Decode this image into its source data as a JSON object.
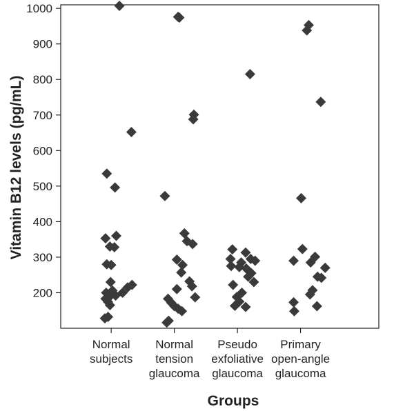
{
  "chart_data": {
    "type": "scatter",
    "title": "",
    "xlabel": "Groups",
    "ylabel": "Vitamin B12 levels (pg/mL)",
    "ylim": [
      100,
      1010
    ],
    "yticks": [
      200,
      300,
      400,
      500,
      600,
      700,
      800,
      900,
      1000
    ],
    "grid": false,
    "marker": "diamond",
    "marker_color": "#3a3a3a",
    "categories": [
      [
        "Normal",
        "subjects"
      ],
      [
        "Normal",
        "tension",
        "glaucoma"
      ],
      [
        "Pseudo",
        "exfoliative",
        "glaucoma"
      ],
      [
        "Primary",
        "open-angle",
        "glaucoma"
      ]
    ],
    "series": [
      {
        "values": [
          {
            "x": 1.13,
            "y": 1007
          },
          {
            "x": 1.32,
            "y": 652
          },
          {
            "x": 0.93,
            "y": 535
          },
          {
            "x": 1.06,
            "y": 496
          },
          {
            "x": 1.08,
            "y": 360
          },
          {
            "x": 0.91,
            "y": 353
          },
          {
            "x": 0.98,
            "y": 330
          },
          {
            "x": 1.05,
            "y": 328
          },
          {
            "x": 0.93,
            "y": 280
          },
          {
            "x": 1.0,
            "y": 278
          },
          {
            "x": 0.99,
            "y": 230
          },
          {
            "x": 1.33,
            "y": 222
          },
          {
            "x": 1.26,
            "y": 215
          },
          {
            "x": 1.02,
            "y": 206
          },
          {
            "x": 0.92,
            "y": 200
          },
          {
            "x": 1.18,
            "y": 200
          },
          {
            "x": 1.07,
            "y": 192
          },
          {
            "x": 0.97,
            "y": 188
          },
          {
            "x": 0.91,
            "y": 183
          },
          {
            "x": 0.95,
            "y": 174
          },
          {
            "x": 0.98,
            "y": 165
          },
          {
            "x": 0.95,
            "y": 132
          },
          {
            "x": 0.9,
            "y": 128
          }
        ]
      },
      {
        "values": [
          {
            "x": 2.06,
            "y": 976
          },
          {
            "x": 2.08,
            "y": 974
          },
          {
            "x": 2.31,
            "y": 701
          },
          {
            "x": 2.3,
            "y": 688
          },
          {
            "x": 1.85,
            "y": 472
          },
          {
            "x": 2.16,
            "y": 367
          },
          {
            "x": 2.2,
            "y": 345
          },
          {
            "x": 2.29,
            "y": 337
          },
          {
            "x": 2.04,
            "y": 293
          },
          {
            "x": 2.13,
            "y": 278
          },
          {
            "x": 2.11,
            "y": 257
          },
          {
            "x": 2.24,
            "y": 232
          },
          {
            "x": 2.28,
            "y": 218
          },
          {
            "x": 2.04,
            "y": 210
          },
          {
            "x": 2.33,
            "y": 187
          },
          {
            "x": 1.9,
            "y": 183
          },
          {
            "x": 1.95,
            "y": 172
          },
          {
            "x": 2.0,
            "y": 162
          },
          {
            "x": 2.06,
            "y": 155
          },
          {
            "x": 2.12,
            "y": 148
          },
          {
            "x": 1.91,
            "y": 121
          },
          {
            "x": 1.88,
            "y": 116
          }
        ]
      },
      {
        "values": [
          {
            "x": 3.2,
            "y": 815
          },
          {
            "x": 2.92,
            "y": 322
          },
          {
            "x": 3.13,
            "y": 313
          },
          {
            "x": 2.89,
            "y": 295
          },
          {
            "x": 3.21,
            "y": 295
          },
          {
            "x": 3.28,
            "y": 290
          },
          {
            "x": 3.06,
            "y": 285
          },
          {
            "x": 2.9,
            "y": 275
          },
          {
            "x": 3.03,
            "y": 272
          },
          {
            "x": 3.14,
            "y": 268
          },
          {
            "x": 3.22,
            "y": 255
          },
          {
            "x": 3.17,
            "y": 245
          },
          {
            "x": 3.26,
            "y": 230
          },
          {
            "x": 2.93,
            "y": 222
          },
          {
            "x": 3.07,
            "y": 200
          },
          {
            "x": 2.99,
            "y": 188
          },
          {
            "x": 3.03,
            "y": 175
          },
          {
            "x": 2.96,
            "y": 163
          },
          {
            "x": 3.13,
            "y": 160
          }
        ]
      },
      {
        "values": [
          {
            "x": 4.13,
            "y": 953
          },
          {
            "x": 4.1,
            "y": 938
          },
          {
            "x": 4.32,
            "y": 737
          },
          {
            "x": 4.01,
            "y": 466
          },
          {
            "x": 4.03,
            "y": 323
          },
          {
            "x": 4.23,
            "y": 301
          },
          {
            "x": 3.89,
            "y": 290
          },
          {
            "x": 4.16,
            "y": 285
          },
          {
            "x": 4.39,
            "y": 270
          },
          {
            "x": 4.27,
            "y": 245
          },
          {
            "x": 4.33,
            "y": 242
          },
          {
            "x": 4.19,
            "y": 207
          },
          {
            "x": 4.15,
            "y": 195
          },
          {
            "x": 3.89,
            "y": 173
          },
          {
            "x": 4.26,
            "y": 162
          },
          {
            "x": 3.9,
            "y": 148
          }
        ]
      }
    ]
  }
}
